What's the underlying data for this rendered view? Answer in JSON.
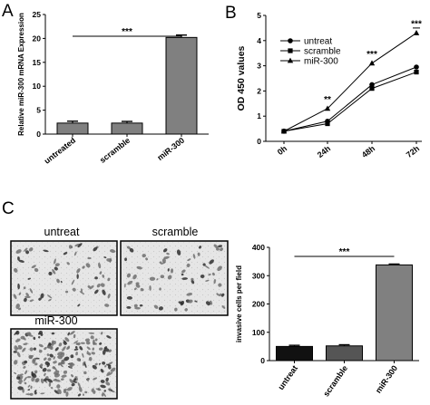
{
  "panels": {
    "a": {
      "letter": "A"
    },
    "b": {
      "letter": "B"
    },
    "c": {
      "letter": "C"
    }
  },
  "micrographs": {
    "untreat": {
      "label": "untreat"
    },
    "scramble": {
      "label": "scramble"
    },
    "mir300": {
      "label": "miR-300"
    }
  },
  "chart_data": [
    {
      "id": "A",
      "type": "bar",
      "ylabel": "Relative miR-300 mRNA Expression",
      "xlabel": "",
      "categories": [
        "untreated",
        "scramble",
        "miR-300"
      ],
      "values": [
        2.3,
        2.3,
        20.2
      ],
      "errors": [
        0.4,
        0.35,
        0.5
      ],
      "ylim": [
        0,
        25
      ],
      "yticks": [
        0,
        5,
        10,
        15,
        20,
        25
      ],
      "bar_color": "#808080",
      "significance": [
        {
          "from": 0,
          "to": 2,
          "label": "***"
        }
      ]
    },
    {
      "id": "B",
      "type": "line",
      "ylabel": "OD 450 values",
      "xlabel": "",
      "x": [
        "0h",
        "24h",
        "48h",
        "72h"
      ],
      "ylim": [
        0,
        5
      ],
      "yticks": [
        0,
        1,
        2,
        3,
        4,
        5
      ],
      "series": [
        {
          "name": "untreat",
          "marker": "circle",
          "values": [
            0.4,
            0.8,
            2.25,
            2.95
          ]
        },
        {
          "name": "scramble",
          "marker": "square",
          "values": [
            0.4,
            0.7,
            2.1,
            2.75
          ]
        },
        {
          "name": "miR-300",
          "marker": "triangle",
          "values": [
            0.4,
            1.3,
            3.1,
            4.3
          ]
        }
      ],
      "annotations": [
        {
          "x": "24h",
          "label": "**"
        },
        {
          "x": "48h",
          "label": "***"
        },
        {
          "x": "72h",
          "label": "***"
        }
      ],
      "legend": "top-left"
    },
    {
      "id": "C",
      "type": "bar",
      "ylabel": "invasive cells per field",
      "xlabel": "",
      "categories": [
        "untreat",
        "scramble",
        "miR-300"
      ],
      "values": [
        50,
        52,
        338
      ],
      "errors": [
        4,
        4,
        3
      ],
      "ylim": [
        0,
        400
      ],
      "yticks": [
        0,
        100,
        200,
        300,
        400
      ],
      "bar_colors": [
        "#111111",
        "#555555",
        "#808080"
      ],
      "significance": [
        {
          "from": 0,
          "to": 2,
          "label": "***"
        }
      ]
    }
  ]
}
